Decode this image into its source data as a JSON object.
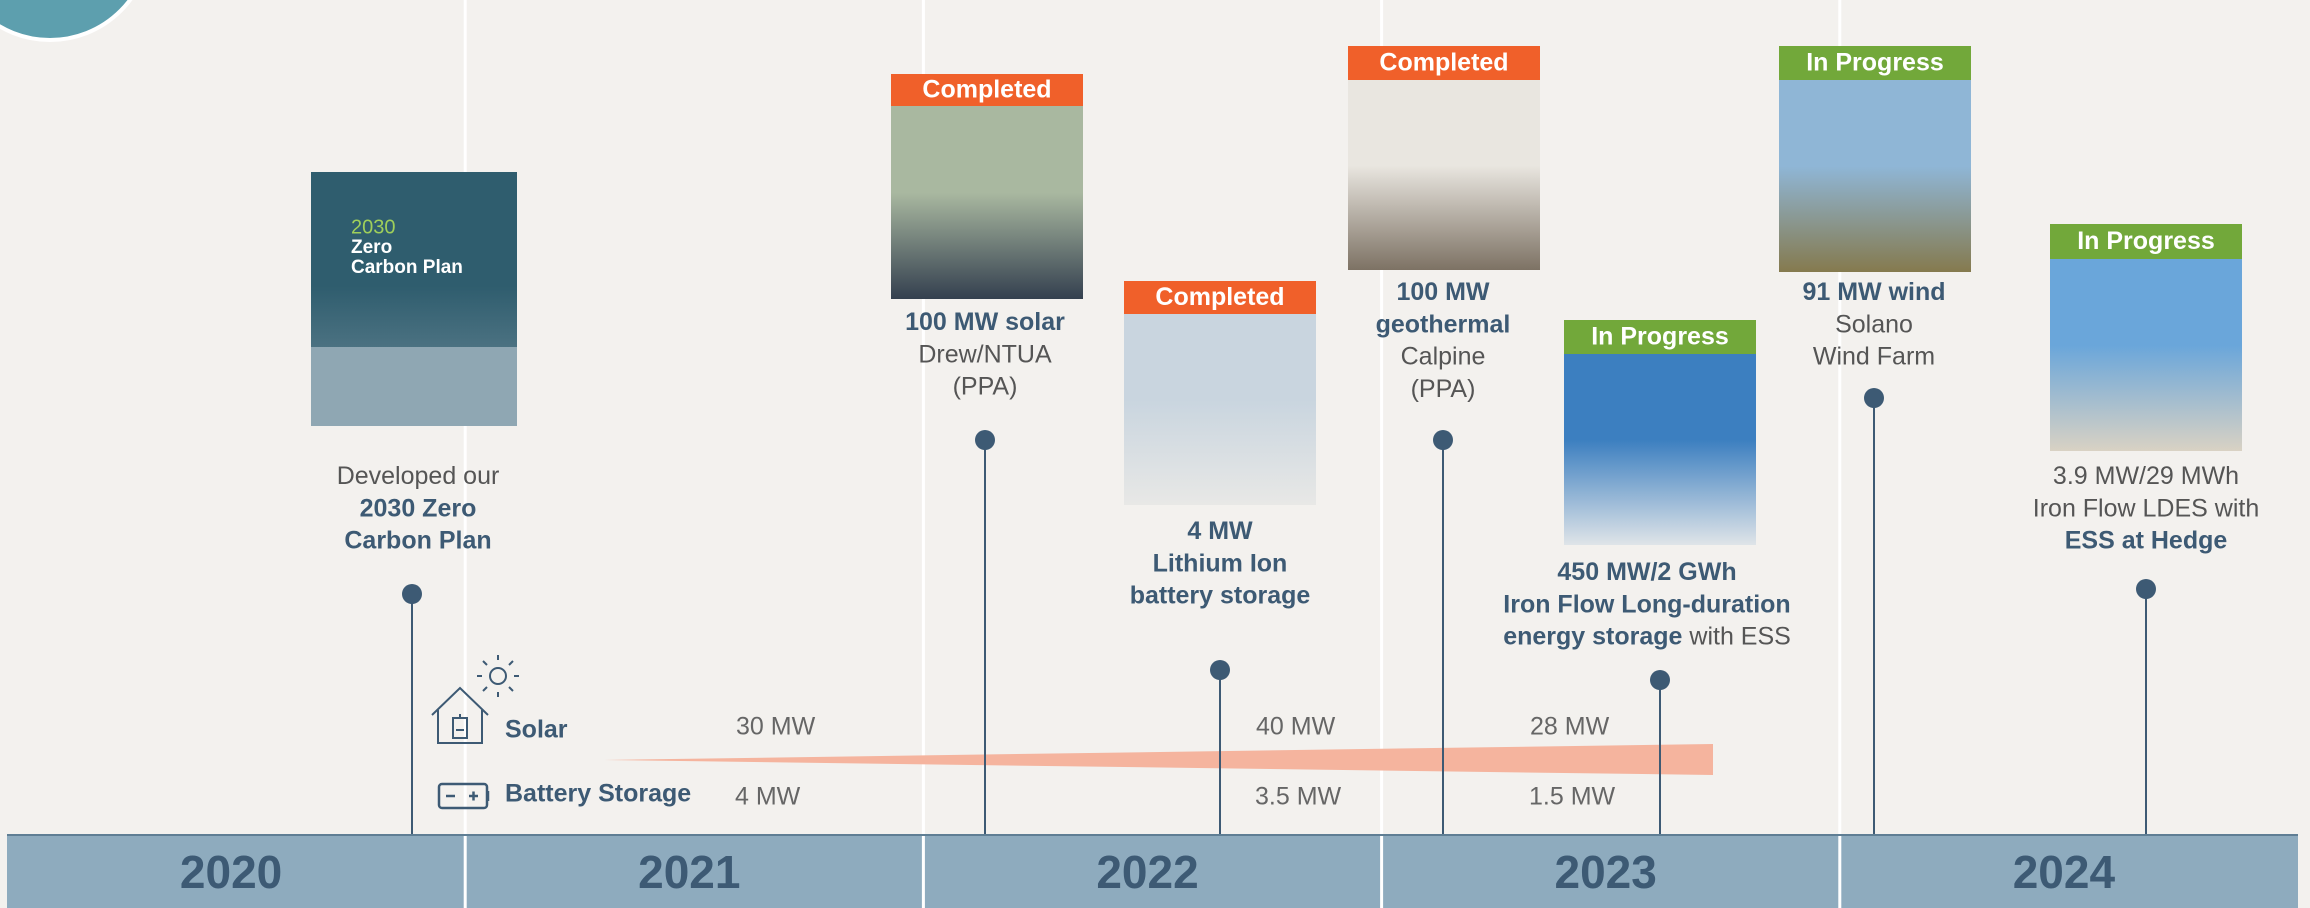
{
  "years": [
    "2020",
    "2021",
    "2022",
    "2023",
    "2024"
  ],
  "milestones": [
    {
      "cover": [
        "2030",
        "Zero",
        "Carbon Plan"
      ],
      "lines": [
        [
          {
            "text": "Developed our",
            "bold": false
          }
        ],
        [
          {
            "text": "2030 Zero",
            "bold": true
          }
        ],
        [
          {
            "text": "Carbon Plan",
            "bold": true
          }
        ]
      ]
    },
    {
      "status": "Completed",
      "color": "#f0602a",
      "lines": [
        [
          {
            "text": "100 MW solar",
            "bold": true
          }
        ],
        [
          {
            "text": "Drew/NTUA",
            "bold": false
          }
        ],
        [
          {
            "text": "(PPA)",
            "bold": false
          }
        ]
      ]
    },
    {
      "status": "Completed",
      "color": "#f0602a",
      "lines": [
        [
          {
            "text": "4 MW",
            "bold": true
          }
        ],
        [
          {
            "text": "Lithium Ion",
            "bold": true
          }
        ],
        [
          {
            "text": "battery storage",
            "bold": true
          }
        ]
      ]
    },
    {
      "status": "Completed",
      "color": "#f0602a",
      "lines": [
        [
          {
            "text": "100 MW",
            "bold": true
          }
        ],
        [
          {
            "text": "geothermal",
            "bold": true
          }
        ],
        [
          {
            "text": "Calpine",
            "bold": false
          }
        ],
        [
          {
            "text": "(PPA)",
            "bold": false
          }
        ]
      ]
    },
    {
      "status": "In Progress",
      "color": "#72a83a",
      "lines": [
        [
          {
            "text": "450 MW/2 GWh",
            "bold": true
          }
        ],
        [
          {
            "text": "Iron Flow Long-duration",
            "bold": true
          }
        ],
        [
          {
            "text": "energy storage",
            "bold": true
          },
          {
            "text": " with ESS",
            "bold": false
          }
        ]
      ]
    },
    {
      "status": "In Progress",
      "color": "#72a83a",
      "lines": [
        [
          {
            "text": "91 MW wind",
            "bold": true
          }
        ],
        [
          {
            "text": "Solano",
            "bold": false
          }
        ],
        [
          {
            "text": "Wind Farm",
            "bold": false
          }
        ]
      ]
    },
    {
      "status": "In Progress",
      "color": "#72a83a",
      "lines": [
        [
          {
            "text": "3.9 MW/29 MWh",
            "bold": false
          }
        ],
        [
          {
            "text": "Iron Flow LDES with",
            "bold": false
          }
        ],
        [
          {
            "text": "ESS at Hedge",
            "bold": true
          }
        ]
      ]
    }
  ],
  "legend": {
    "solar": {
      "label": "Solar",
      "values": [
        "30 MW",
        "40 MW",
        "28 MW"
      ]
    },
    "battery": {
      "label": "Battery Storage",
      "values": [
        "4 MW",
        "3.5 MW",
        "1.5 MW"
      ]
    }
  }
}
